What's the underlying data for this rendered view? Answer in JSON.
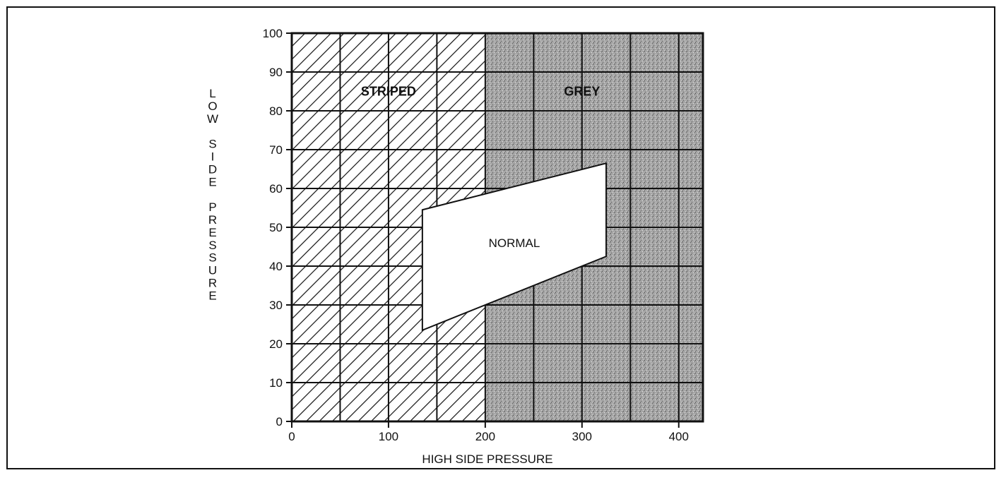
{
  "chart_data": {
    "type": "area",
    "xlabel": "HIGH SIDE PRESSURE",
    "ylabel": "LOW SIDE PRESSURE",
    "xlim": [
      0,
      425
    ],
    "ylim": [
      0,
      100
    ],
    "x_ticks": [
      0,
      100,
      200,
      300,
      400
    ],
    "y_ticks": [
      0,
      10,
      20,
      30,
      40,
      50,
      60,
      70,
      80,
      90,
      100
    ],
    "x_grid": [
      50,
      100,
      150,
      200,
      250,
      300,
      350,
      400
    ],
    "y_grid": [
      10,
      20,
      30,
      40,
      50,
      60,
      70,
      80,
      90
    ],
    "grid": true,
    "regions": [
      {
        "name": "STRIPED",
        "label": "STRIPED",
        "pattern": "diagonal-stripes",
        "x_range": [
          0,
          200
        ],
        "y_range": [
          0,
          100
        ],
        "label_at": [
          100,
          85
        ]
      },
      {
        "name": "GREY",
        "label": "GREY",
        "pattern": "grey-stipple",
        "x_range": [
          200,
          425
        ],
        "y_range": [
          0,
          100
        ],
        "label_at": [
          300,
          85
        ]
      },
      {
        "name": "NORMAL",
        "label": "NORMAL",
        "pattern": "white",
        "polygon": [
          [
            135,
            54.5
          ],
          [
            325,
            66.5
          ],
          [
            325,
            42.5
          ],
          [
            135,
            23.5
          ]
        ],
        "label_at": [
          230,
          46
        ]
      }
    ],
    "colors": {
      "striped_bg": "#ffffff",
      "grey_bg": "#a6a6a6",
      "lines": "#111111",
      "normal_fill": "#ffffff"
    }
  }
}
